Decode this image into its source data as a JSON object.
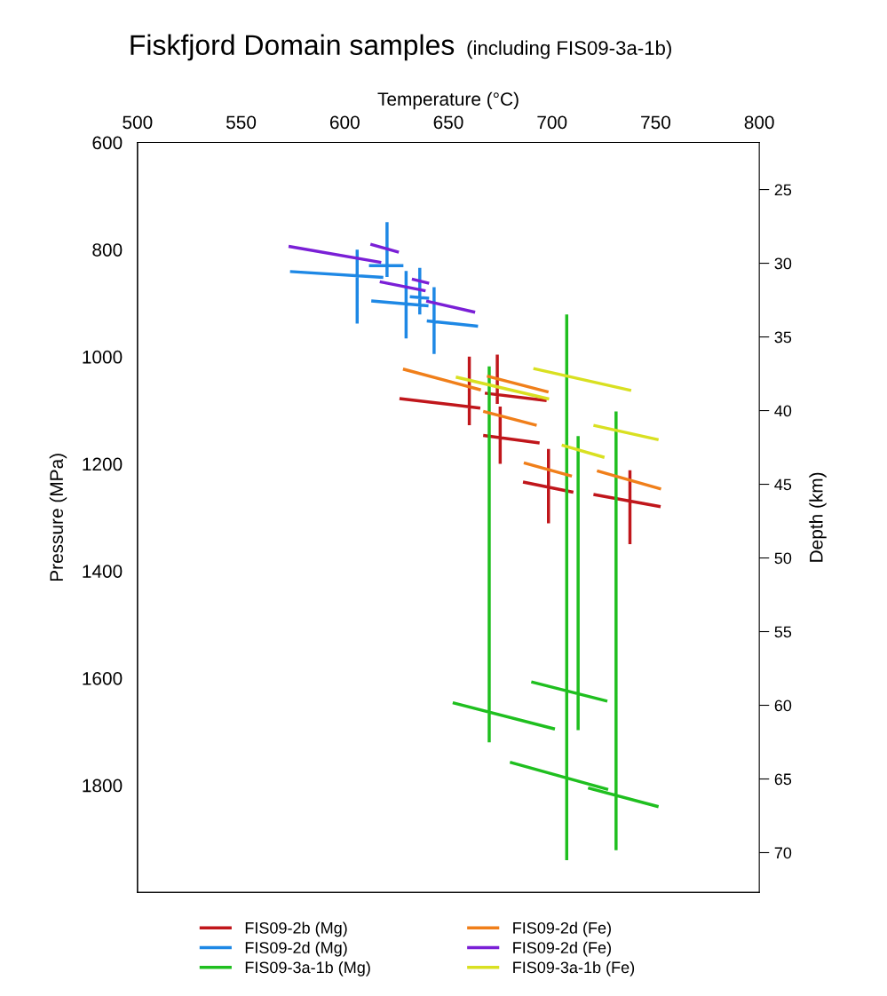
{
  "chart_data": {
    "type": "line",
    "title": "Fiskfjord Domain samples",
    "subtitle": "(including FIS09-3a-1b)",
    "xlabel": "Temperature (°C)",
    "ylabel": "Pressure (MPa)",
    "y2label": "Depth (km)",
    "xlim": [
      500,
      800
    ],
    "xticks": [
      500,
      550,
      600,
      650,
      700,
      750,
      800
    ],
    "ylim": [
      2000,
      600
    ],
    "yticks": [
      600,
      800,
      1000,
      1200,
      1400,
      1600,
      1800
    ],
    "y2lim": [
      72.7,
      21.8
    ],
    "y2ticks": [
      25,
      30,
      35,
      40,
      45,
      50,
      55,
      60,
      65,
      70
    ],
    "grid": false,
    "legend": "bottom",
    "marker": "none",
    "line_style": "solid",
    "series": [
      {
        "name": "FIS09-2b (Mg)",
        "color": "#c0161b",
        "x": [
          626.4,
          665.4,
          null,
          660.1,
          660.1,
          null,
          667.6,
          697.4,
          null,
          673.6,
          673.6,
          null,
          666.8,
          694,
          null,
          675,
          675,
          null,
          686,
          710.3,
          null,
          698.3,
          698.3,
          null,
          720,
          752.4,
          null,
          737.6,
          737.6
        ],
        "values": [
          1078,
          1096,
          null,
          1000,
          1128,
          null,
          1068,
          1082,
          null,
          996,
          1088,
          null,
          1147,
          1161,
          null,
          1093,
          1200,
          null,
          1234,
          1253,
          null,
          1172,
          1311,
          null,
          1257,
          1280,
          null,
          1212,
          1350
        ]
      },
      {
        "name": "FIS09-2d (Mg)",
        "color": "#1e88e5",
        "x": [
          573.6,
          618.6,
          null,
          606,
          606,
          null,
          611.7,
          628.3,
          null,
          620.4,
          620.4,
          null,
          612.8,
          640.4,
          null,
          629.6,
          629.6,
          null,
          631.4,
          640.7,
          null,
          636.2,
          636.2,
          null,
          639.6,
          664.3,
          null,
          643.1,
          643.1
        ],
        "values": [
          841,
          852,
          null,
          800,
          938,
          null,
          830,
          830,
          null,
          749,
          851,
          null,
          896,
          905,
          null,
          840,
          966,
          null,
          888,
          891,
          null,
          834,
          921,
          null,
          933,
          943,
          null,
          870,
          995
        ]
      },
      {
        "name": "FIS09-3a-1b (Mg)",
        "color": "#1fbf1f",
        "x": [
          669.7,
          669.7,
          null,
          652.1,
          701.4,
          null,
          707.1,
          707.1,
          null,
          679.7,
          727.1,
          null,
          712.6,
          712.6,
          null,
          690,
          726.7,
          null,
          730.9,
          730.9,
          null,
          717.4,
          751.4
        ],
        "values": [
          1018,
          1720,
          null,
          1646,
          1695,
          null,
          921,
          1940,
          null,
          1757,
          1808,
          null,
          1148,
          1697,
          null,
          1607,
          1643,
          null,
          1102,
          1921,
          null,
          1805,
          1840
        ]
      },
      {
        "name": "FIS09-2d (Fe)",
        "color": "#f07f1a",
        "x": [
          628.1,
          665.7,
          null,
          668.6,
          698.3,
          null,
          666.8,
          692.6,
          null,
          686.4,
          709.6,
          null,
          721.7,
          752.6
        ],
        "values": [
          1023,
          1062,
          null,
          1036,
          1066,
          null,
          1102,
          1128,
          null,
          1198,
          1223,
          null,
          1213,
          1247
        ]
      },
      {
        "name": "FIS09-2d (Fe)",
        "color": "#7a1fd6",
        "x": [
          572.9,
          617.6,
          null,
          612.4,
          626.1,
          null,
          616.9,
          639,
          null,
          632.4,
          640.7,
          null,
          639.3,
          662.9
        ],
        "values": [
          794,
          824,
          null,
          790,
          805,
          null,
          860,
          877,
          null,
          855,
          863,
          null,
          896,
          917
        ]
      },
      {
        "name": "FIS09-3a-1b (Fe)",
        "color": "#d9e021",
        "x": [
          653.6,
          698.6,
          null,
          691,
          738.2,
          null,
          704.7,
          725.3,
          null,
          720,
          751.4
        ],
        "values": [
          1038,
          1079,
          null,
          1022,
          1063,
          null,
          1165,
          1188,
          null,
          1128,
          1155
        ]
      }
    ]
  }
}
